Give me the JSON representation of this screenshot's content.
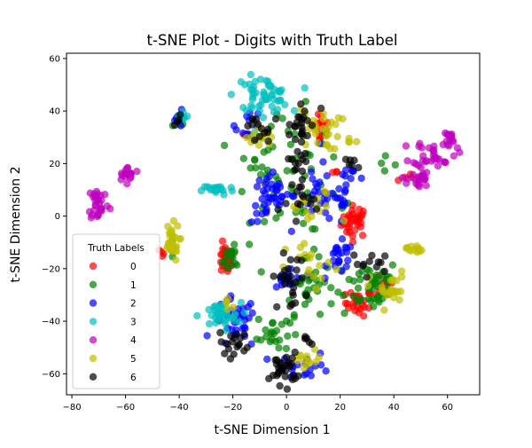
{
  "chart_data": {
    "type": "scatter",
    "title": "t-SNE Plot - Digits with Truth Label",
    "xlabel": "t-SNE Dimension 1",
    "ylabel": "t-SNE Dimension 2",
    "xlim": [
      -82,
      72
    ],
    "ylim": [
      -68,
      62
    ],
    "xticks": [
      -80,
      -60,
      -40,
      -20,
      0,
      20,
      40,
      60
    ],
    "yticks": [
      -60,
      -40,
      -20,
      0,
      20,
      40,
      60
    ],
    "grid": false,
    "legend": {
      "title": "Truth Labels",
      "position": "lower-left"
    },
    "series": [
      {
        "name": "0",
        "color": "#ff0000",
        "clusters": [
          {
            "cx": 25.5,
            "cy": -2,
            "sx": 2.5,
            "sy": 3,
            "n": 36
          },
          {
            "cx": 27,
            "cy": -33,
            "sx": 2.5,
            "sy": 2.5,
            "n": 24
          },
          {
            "cx": -23,
            "cy": -17,
            "sx": 1.3,
            "sy": 3,
            "n": 22
          },
          {
            "cx": 13,
            "cy": 33,
            "sx": 1.5,
            "sy": 3,
            "n": 16
          },
          {
            "cx": 37,
            "cy": -27,
            "sx": 2,
            "sy": 2,
            "n": 10
          },
          {
            "cx": -46,
            "cy": -14,
            "sx": 1,
            "sy": 1,
            "n": 4
          },
          {
            "cx": 44,
            "cy": 15,
            "sx": 1.5,
            "sy": 1,
            "n": 4
          },
          {
            "cx": 18,
            "cy": 17,
            "sx": 1,
            "sy": 1,
            "n": 3
          },
          {
            "cx": -16,
            "cy": 31,
            "sx": 1,
            "sy": 1,
            "n": 3
          }
        ]
      },
      {
        "name": "1",
        "color": "#008000",
        "clusters": [
          {
            "cx": 32,
            "cy": -26,
            "sx": 5,
            "sy": 5,
            "n": 45
          },
          {
            "cx": 8,
            "cy": -27,
            "sx": 5,
            "sy": 5,
            "n": 35
          },
          {
            "cx": -5,
            "cy": -44,
            "sx": 3,
            "sy": 4,
            "n": 22
          },
          {
            "cx": -20,
            "cy": -16,
            "sx": 3,
            "sy": 3,
            "n": 16
          },
          {
            "cx": 0,
            "cy": 25,
            "sx": 8,
            "sy": 8,
            "n": 30
          },
          {
            "cx": 10,
            "cy": 5,
            "sx": 8,
            "sy": 8,
            "n": 18
          },
          {
            "cx": -8,
            "cy": 10,
            "sx": 6,
            "sy": 6,
            "n": 12
          },
          {
            "cx": -40,
            "cy": 35,
            "sx": 1.5,
            "sy": 2,
            "n": 4
          },
          {
            "cx": -43,
            "cy": -12,
            "sx": 1.5,
            "sy": 2,
            "n": 5
          },
          {
            "cx": 35,
            "cy": 20,
            "sx": 3,
            "sy": 1.5,
            "n": 4
          }
        ]
      },
      {
        "name": "2",
        "color": "#0000ff",
        "clusters": [
          {
            "cx": -6,
            "cy": 7,
            "sx": 3.5,
            "sy": 5,
            "n": 40
          },
          {
            "cx": 15,
            "cy": 8,
            "sx": 6,
            "sy": 6,
            "n": 35
          },
          {
            "cx": -19,
            "cy": -41,
            "sx": 4,
            "sy": 5,
            "n": 35
          },
          {
            "cx": 20,
            "cy": -16,
            "sx": 2.5,
            "sy": 3,
            "n": 22
          },
          {
            "cx": 1,
            "cy": -24,
            "sx": 3,
            "sy": 3,
            "n": 14
          },
          {
            "cx": 7,
            "cy": -57,
            "sx": 5,
            "sy": 2.5,
            "n": 18
          },
          {
            "cx": -14,
            "cy": 35,
            "sx": 2.5,
            "sy": 3,
            "n": 12
          },
          {
            "cx": -40,
            "cy": 37,
            "sx": 1.5,
            "sy": 1.5,
            "n": 7
          },
          {
            "cx": 24,
            "cy": 13,
            "sx": 3,
            "sy": 3,
            "n": 10
          }
        ]
      },
      {
        "name": "3",
        "color": "#00bfbf",
        "clusters": [
          {
            "cx": -9,
            "cy": 46,
            "sx": 5,
            "sy": 3.5,
            "n": 55
          },
          {
            "cx": -25,
            "cy": -38,
            "sx": 4,
            "sy": 2.5,
            "n": 36
          },
          {
            "cx": -25.5,
            "cy": 10,
            "sx": 3,
            "sy": 1,
            "n": 24
          },
          {
            "cx": -39,
            "cy": 38,
            "sx": 1.2,
            "sy": 1.2,
            "n": 7
          }
        ]
      },
      {
        "name": "4",
        "color": "#bf00bf",
        "clusters": [
          {
            "cx": -70,
            "cy": 5,
            "sx": 2,
            "sy": 3.5,
            "n": 30
          },
          {
            "cx": -59,
            "cy": 16,
            "sx": 2.2,
            "sy": 1.3,
            "n": 18
          },
          {
            "cx": 49,
            "cy": 14,
            "sx": 2,
            "sy": 2.5,
            "n": 22
          },
          {
            "cx": 55,
            "cy": 24,
            "sx": 4,
            "sy": 2.5,
            "n": 30
          },
          {
            "cx": 60,
            "cy": 29,
            "sx": 1.5,
            "sy": 2,
            "n": 14
          }
        ]
      },
      {
        "name": "5",
        "color": "#bfbf00",
        "clusters": [
          {
            "cx": -43,
            "cy": -10,
            "sx": 1.5,
            "sy": 3.5,
            "n": 30
          },
          {
            "cx": 12,
            "cy": 33,
            "sx": 4,
            "sy": 4,
            "n": 28
          },
          {
            "cx": -10,
            "cy": 30,
            "sx": 2.5,
            "sy": 2,
            "n": 14
          },
          {
            "cx": 47.5,
            "cy": -12.5,
            "sx": 1.5,
            "sy": 0.8,
            "n": 14
          },
          {
            "cx": 38,
            "cy": -28,
            "sx": 3.5,
            "sy": 3.5,
            "n": 24
          },
          {
            "cx": 8,
            "cy": -55,
            "sx": 3,
            "sy": 2,
            "n": 12
          },
          {
            "cx": 10,
            "cy": -20,
            "sx": 5,
            "sy": 5,
            "n": 16
          },
          {
            "cx": 10,
            "cy": 2,
            "sx": 5,
            "sy": 4,
            "n": 14
          },
          {
            "cx": 25,
            "cy": 28,
            "sx": 2,
            "sy": 1,
            "n": 4
          },
          {
            "cx": -22,
            "cy": -33,
            "sx": 2,
            "sy": 1.5,
            "n": 5
          }
        ]
      },
      {
        "name": "6",
        "color": "#000000",
        "clusters": [
          {
            "cx": -1,
            "cy": -58,
            "sx": 2.5,
            "sy": 3,
            "n": 30
          },
          {
            "cx": -19,
            "cy": -48,
            "sx": 3,
            "sy": 3,
            "n": 18
          },
          {
            "cx": 1,
            "cy": -25,
            "sx": 3,
            "sy": 5,
            "n": 24
          },
          {
            "cx": 5,
            "cy": 35,
            "sx": 3,
            "sy": 5,
            "n": 22
          },
          {
            "cx": 5,
            "cy": 22,
            "sx": 2.5,
            "sy": 4,
            "n": 16
          },
          {
            "cx": -12,
            "cy": 32,
            "sx": 3,
            "sy": 3,
            "n": 12
          },
          {
            "cx": 32,
            "cy": -18,
            "sx": 4,
            "sy": 2,
            "n": 12
          },
          {
            "cx": 8,
            "cy": 5,
            "sx": 5,
            "sy": 5,
            "n": 14
          },
          {
            "cx": -40,
            "cy": 38,
            "sx": 1.2,
            "sy": 1.2,
            "n": 4
          },
          {
            "cx": 24,
            "cy": 20,
            "sx": 2.5,
            "sy": 1,
            "n": 6
          },
          {
            "cx": 9,
            "cy": -48,
            "sx": 1.5,
            "sy": 1,
            "n": 5
          }
        ]
      }
    ]
  }
}
